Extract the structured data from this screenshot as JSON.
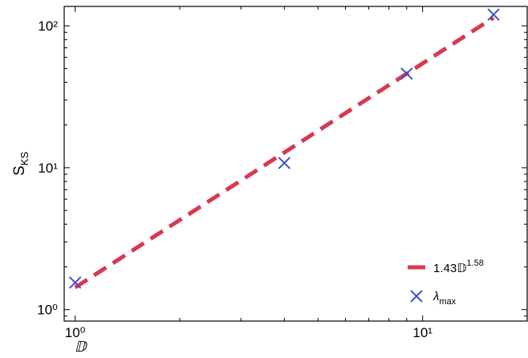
{
  "chart_data": {
    "type": "scatter",
    "x_label": "𝔻",
    "y_label": {
      "text": "S",
      "sub": "KS"
    },
    "xscale": "log",
    "yscale": "log",
    "xlim": [
      0.93,
      20
    ],
    "ylim": [
      0.83,
      137
    ],
    "xticks": [
      {
        "value": 1,
        "label": "10⁰"
      },
      {
        "value": 10,
        "label": "10¹"
      }
    ],
    "yticks": [
      {
        "value": 1,
        "label": "10⁰"
      },
      {
        "value": 10,
        "label": "10¹"
      },
      {
        "value": 100,
        "label": "10²"
      }
    ],
    "legend": "lower right",
    "series": [
      {
        "name": {
          "text": "1.43𝔻",
          "sup": "1.58"
        },
        "kind": "line",
        "color": "#d9384f",
        "x": [
          1,
          4,
          9,
          16
        ],
        "values": [
          1.43,
          12.79,
          46.0,
          114.2
        ]
      },
      {
        "name": {
          "text": "λ",
          "sub": "max"
        },
        "kind": "marker",
        "color": "#4450c8",
        "x": [
          1,
          4,
          9,
          16
        ],
        "values": [
          1.55,
          10.8,
          46,
          120
        ]
      }
    ]
  }
}
